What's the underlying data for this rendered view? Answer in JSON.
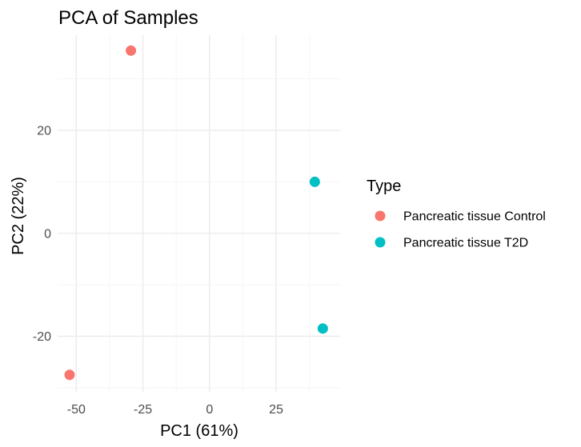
{
  "chart_data": {
    "type": "scatter",
    "title": "PCA of Samples",
    "xlabel": "PC1 (61%)",
    "ylabel": "PC2 (22%)",
    "xlim": [
      -57,
      49
    ],
    "ylim": [
      -30.8,
      38.5
    ],
    "x_ticks": [
      -50,
      -25,
      0,
      25
    ],
    "x_tick_labels": [
      "-50",
      "-25",
      "0",
      "25"
    ],
    "y_ticks": [
      -20,
      0,
      20
    ],
    "y_tick_labels": [
      "-20",
      "0",
      "20"
    ],
    "grid": true,
    "legend": {
      "title": "Type",
      "position": "right"
    },
    "series": [
      {
        "name": "Pancreatic tissue Control",
        "color": "#f8766d",
        "points": [
          {
            "x": -29.5,
            "y": 35.5
          },
          {
            "x": -52.5,
            "y": -27.5
          }
        ]
      },
      {
        "name": "Pancreatic tissue T2D",
        "color": "#00bfc4",
        "points": [
          {
            "x": 39.5,
            "y": 10
          },
          {
            "x": 42.5,
            "y": -18.5
          }
        ]
      }
    ]
  }
}
